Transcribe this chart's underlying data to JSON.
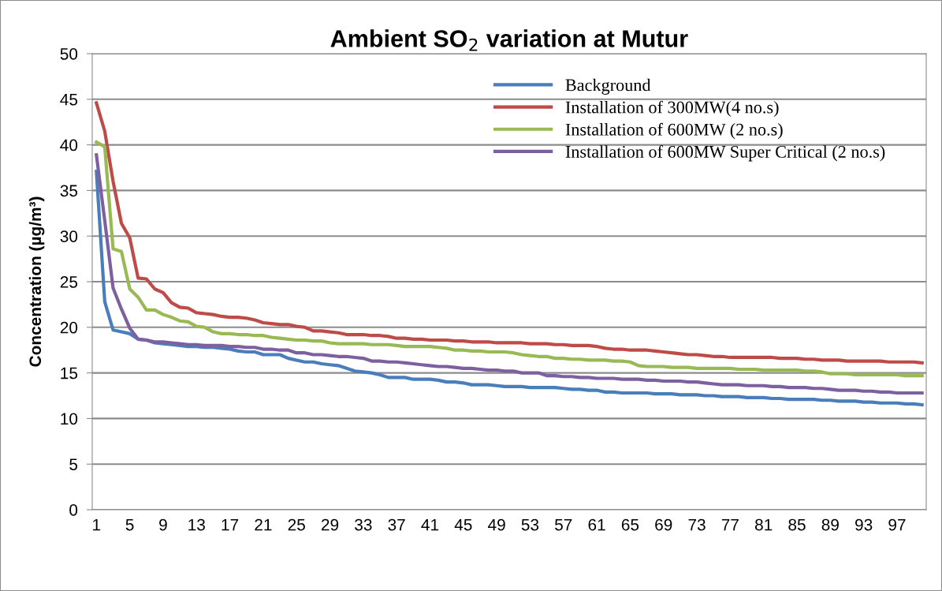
{
  "chart_data": {
    "type": "line",
    "title": "Ambient SO$_{2}$ variation at Mutur",
    "ylabel": "Concentration (µg/m³)",
    "categories": [
      "1",
      null,
      null,
      null,
      "5",
      null,
      null,
      null,
      "9",
      null,
      null,
      null,
      "13",
      null,
      null,
      null,
      "17",
      null,
      null,
      null,
      "21",
      null,
      null,
      null,
      "25",
      null,
      null,
      null,
      "29",
      null,
      null,
      null,
      "33",
      null,
      null,
      null,
      "37",
      null,
      null,
      null,
      "41",
      null,
      null,
      null,
      "45",
      null,
      null,
      null,
      "49",
      null,
      null,
      null,
      "53",
      null,
      null,
      null,
      "57",
      null,
      null,
      null,
      "61",
      null,
      null,
      null,
      "65",
      null,
      null,
      null,
      "69",
      null,
      null,
      null,
      "73",
      null,
      null,
      null,
      "77",
      null,
      null,
      null,
      "81",
      null,
      null,
      null,
      "85",
      null,
      null,
      null,
      "89",
      null,
      null,
      null,
      "93",
      null,
      null,
      null,
      "97",
      null,
      null,
      null
    ],
    "ylim": [
      0,
      50
    ],
    "yticks": [
      0,
      5,
      10,
      15,
      20,
      25,
      30,
      35,
      40,
      45,
      50
    ],
    "grid": "y",
    "legend": "top right",
    "marker": "none",
    "line_style": "solid",
    "series": [
      {
        "name": "Background",
        "color": "#4a7ebb",
        "values": [
          37.1,
          22.8,
          19.7,
          19.5,
          19.3,
          18.7,
          18.6,
          18.3,
          18.2,
          18.1,
          18.0,
          17.9,
          17.9,
          17.8,
          17.8,
          17.7,
          17.6,
          17.4,
          17.3,
          17.3,
          17.0,
          17.0,
          17.0,
          16.6,
          16.4,
          16.2,
          16.2,
          16.0,
          15.9,
          15.8,
          15.5,
          15.2,
          15.1,
          15.0,
          14.8,
          14.5,
          14.5,
          14.5,
          14.3,
          14.3,
          14.3,
          14.2,
          14.0,
          14.0,
          13.9,
          13.7,
          13.7,
          13.7,
          13.6,
          13.5,
          13.5,
          13.5,
          13.4,
          13.4,
          13.4,
          13.4,
          13.3,
          13.2,
          13.2,
          13.1,
          13.1,
          12.9,
          12.9,
          12.8,
          12.8,
          12.8,
          12.8,
          12.7,
          12.7,
          12.7,
          12.6,
          12.6,
          12.6,
          12.5,
          12.5,
          12.4,
          12.4,
          12.4,
          12.3,
          12.3,
          12.3,
          12.2,
          12.2,
          12.1,
          12.1,
          12.1,
          12.1,
          12.0,
          12.0,
          11.9,
          11.9,
          11.9,
          11.8,
          11.8,
          11.7,
          11.7,
          11.7,
          11.6,
          11.6,
          11.5
        ]
      },
      {
        "name": "Installation of 300MW(4 no.s)",
        "color": "#be4b48",
        "values": [
          44.6,
          41.5,
          36.0,
          31.4,
          29.8,
          25.4,
          25.3,
          24.2,
          23.8,
          22.7,
          22.2,
          22.1,
          21.6,
          21.5,
          21.4,
          21.2,
          21.1,
          21.1,
          21.0,
          20.8,
          20.5,
          20.4,
          20.3,
          20.3,
          20.1,
          20.0,
          19.6,
          19.6,
          19.5,
          19.4,
          19.2,
          19.2,
          19.2,
          19.1,
          19.1,
          19.0,
          18.8,
          18.8,
          18.7,
          18.7,
          18.6,
          18.6,
          18.6,
          18.5,
          18.5,
          18.4,
          18.4,
          18.4,
          18.3,
          18.3,
          18.3,
          18.3,
          18.2,
          18.2,
          18.2,
          18.1,
          18.1,
          18.0,
          18.0,
          18.0,
          17.9,
          17.7,
          17.6,
          17.6,
          17.5,
          17.5,
          17.5,
          17.4,
          17.3,
          17.2,
          17.1,
          17.0,
          17.0,
          16.9,
          16.8,
          16.8,
          16.7,
          16.7,
          16.7,
          16.7,
          16.7,
          16.7,
          16.6,
          16.6,
          16.6,
          16.5,
          16.5,
          16.4,
          16.4,
          16.4,
          16.3,
          16.3,
          16.3,
          16.3,
          16.3,
          16.2,
          16.2,
          16.2,
          16.2,
          16.1
        ]
      },
      {
        "name": "Installation of 600MW (2 no.s)",
        "color": "#98b954",
        "values": [
          40.3,
          39.8,
          28.6,
          28.3,
          24.2,
          23.3,
          21.9,
          21.9,
          21.4,
          21.1,
          20.7,
          20.6,
          20.1,
          20.0,
          19.5,
          19.3,
          19.3,
          19.2,
          19.2,
          19.1,
          19.1,
          18.9,
          18.8,
          18.7,
          18.6,
          18.6,
          18.5,
          18.5,
          18.3,
          18.2,
          18.2,
          18.2,
          18.2,
          18.1,
          18.1,
          18.1,
          18.0,
          17.9,
          17.9,
          17.9,
          17.9,
          17.8,
          17.7,
          17.5,
          17.5,
          17.4,
          17.4,
          17.3,
          17.3,
          17.3,
          17.2,
          17.0,
          16.9,
          16.8,
          16.8,
          16.6,
          16.6,
          16.5,
          16.5,
          16.4,
          16.4,
          16.4,
          16.3,
          16.3,
          16.2,
          15.8,
          15.7,
          15.7,
          15.7,
          15.6,
          15.6,
          15.6,
          15.5,
          15.5,
          15.5,
          15.5,
          15.5,
          15.4,
          15.4,
          15.4,
          15.3,
          15.3,
          15.3,
          15.3,
          15.3,
          15.2,
          15.2,
          15.1,
          14.9,
          14.9,
          14.9,
          14.8,
          14.8,
          14.8,
          14.8,
          14.8,
          14.8,
          14.7,
          14.7,
          14.7
        ]
      },
      {
        "name": "Installation of 600MW Super Critical (2 no.s)",
        "color": "#7d60a0",
        "values": [
          38.9,
          31.7,
          24.3,
          22.0,
          19.9,
          18.7,
          18.6,
          18.4,
          18.4,
          18.3,
          18.2,
          18.1,
          18.1,
          18.0,
          18.0,
          18.0,
          17.9,
          17.9,
          17.8,
          17.8,
          17.6,
          17.6,
          17.5,
          17.5,
          17.2,
          17.2,
          17.0,
          17.0,
          16.9,
          16.8,
          16.8,
          16.7,
          16.6,
          16.3,
          16.3,
          16.2,
          16.2,
          16.1,
          16.0,
          15.9,
          15.8,
          15.7,
          15.7,
          15.6,
          15.5,
          15.5,
          15.4,
          15.3,
          15.3,
          15.2,
          15.2,
          15.0,
          15.0,
          15.0,
          14.7,
          14.7,
          14.6,
          14.6,
          14.5,
          14.5,
          14.4,
          14.4,
          14.4,
          14.3,
          14.3,
          14.3,
          14.2,
          14.2,
          14.1,
          14.1,
          14.1,
          14.0,
          14.0,
          13.9,
          13.8,
          13.7,
          13.7,
          13.7,
          13.6,
          13.6,
          13.6,
          13.5,
          13.5,
          13.4,
          13.4,
          13.4,
          13.3,
          13.3,
          13.2,
          13.1,
          13.1,
          13.1,
          13.0,
          13.0,
          12.9,
          12.9,
          12.8,
          12.8,
          12.8,
          12.8
        ]
      }
    ]
  }
}
